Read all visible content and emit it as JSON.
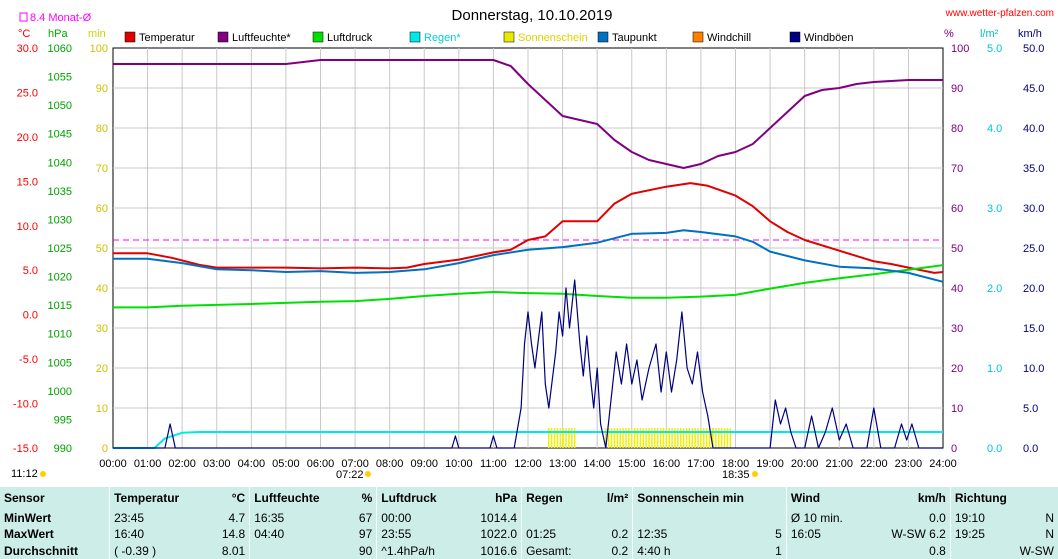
{
  "header": {
    "title": "Donnerstag, 10.10.2019",
    "site": "www.wetter-pfalzen.com",
    "monat_label": "8.4 Monat-Ø",
    "time_left": "11:12",
    "time_sunset": "18:35",
    "time_sunrise": "07:22"
  },
  "units": {
    "left": [
      "°C",
      "hPa",
      "min"
    ],
    "right": [
      "%",
      "l/m²",
      "km/h"
    ]
  },
  "legend": [
    {
      "label": "Temperatur",
      "color": "#e00000"
    },
    {
      "label": "Luftfeuchte*",
      "color": "#800080"
    },
    {
      "label": "Luftdruck",
      "color": "#00e000"
    },
    {
      "label": "Regen*",
      "color": "#00e8e8"
    },
    {
      "label": "Sonnenschein",
      "color": "#e8e800"
    },
    {
      "label": "Taupunkt",
      "color": "#0070c0"
    },
    {
      "label": "Windchill",
      "color": "#ff8000"
    },
    {
      "label": "Windböen",
      "color": "#000080"
    }
  ],
  "chart_data": {
    "type": "line",
    "title": "Donnerstag, 10.10.2019",
    "x_ticks": [
      "00:00",
      "01:00",
      "02:00",
      "03:00",
      "04:00",
      "05:00",
      "06:00",
      "07:00",
      "08:00",
      "09:00",
      "10:00",
      "11:00",
      "12:00",
      "13:00",
      "14:00",
      "15:00",
      "16:00",
      "17:00",
      "18:00",
      "19:00",
      "20:00",
      "21:00",
      "22:00",
      "23:00",
      "24:00"
    ],
    "xlim_hours": [
      0,
      24
    ],
    "axes": {
      "temperature_c": {
        "range": [
          -15,
          30
        ],
        "ticks": [
          "30.0",
          "25.0",
          "20.0",
          "15.0",
          "10.0",
          "5.0",
          "0.0",
          "-5.0",
          "-10.0",
          "-15.0"
        ]
      },
      "pressure_hpa": {
        "range": [
          990,
          1060
        ],
        "ticks": [
          "1060",
          "1055",
          "1050",
          "1045",
          "1040",
          "1035",
          "1030",
          "1025",
          "1020",
          "1015",
          "1010",
          "1005",
          "1000",
          "995",
          "990"
        ]
      },
      "sunshine_min": {
        "range": [
          0,
          100
        ],
        "ticks": [
          "100",
          "90",
          "80",
          "70",
          "60",
          "50",
          "40",
          "30",
          "20",
          "10",
          "0"
        ]
      },
      "humidity_pct": {
        "range": [
          0,
          100
        ],
        "ticks": [
          "100",
          "90",
          "80",
          "70",
          "60",
          "50",
          "40",
          "30",
          "20",
          "10",
          "0"
        ]
      },
      "rain_lm2": {
        "range": [
          0,
          5
        ],
        "ticks": [
          "5.0",
          "4.0",
          "3.0",
          "2.0",
          "1.0",
          "0.0"
        ]
      },
      "wind_kmh": {
        "range": [
          0,
          50
        ],
        "ticks": [
          "50.0",
          "45.0",
          "40.0",
          "35.0",
          "30.0",
          "25.0",
          "20.0",
          "15.0",
          "10.0",
          "5.0",
          "0.0"
        ]
      }
    },
    "monthly_avg_temp_c": 8.4,
    "series": [
      {
        "name": "Temperatur",
        "axis": "temperature_c",
        "color": "#e00000",
        "points": [
          [
            0,
            6.9
          ],
          [
            1,
            6.9
          ],
          [
            1.7,
            6.4
          ],
          [
            2.5,
            5.6
          ],
          [
            3,
            5.3
          ],
          [
            4,
            5.3
          ],
          [
            5,
            5.3
          ],
          [
            6,
            5.2
          ],
          [
            7,
            5.3
          ],
          [
            8,
            5.2
          ],
          [
            8.5,
            5.3
          ],
          [
            9,
            5.7
          ],
          [
            10,
            6.2
          ],
          [
            11,
            7.0
          ],
          [
            11.5,
            7.3
          ],
          [
            12,
            8.4
          ],
          [
            12.5,
            8.8
          ],
          [
            13,
            10.5
          ],
          [
            14,
            10.5
          ],
          [
            14.5,
            12.5
          ],
          [
            15,
            13.6
          ],
          [
            16,
            14.4
          ],
          [
            16.7,
            14.8
          ],
          [
            17.2,
            14.5
          ],
          [
            18,
            13.4
          ],
          [
            18.5,
            12.2
          ],
          [
            19,
            10.5
          ],
          [
            19.5,
            9.3
          ],
          [
            20,
            8.4
          ],
          [
            21,
            7.2
          ],
          [
            22,
            6.0
          ],
          [
            22.5,
            5.7
          ],
          [
            23,
            5.3
          ],
          [
            23.75,
            4.7
          ],
          [
            24,
            4.8
          ]
        ]
      },
      {
        "name": "Luftfeuchte*",
        "axis": "humidity_pct",
        "color": "#800080",
        "points": [
          [
            0,
            96
          ],
          [
            2,
            96
          ],
          [
            5,
            96
          ],
          [
            6,
            97
          ],
          [
            8,
            97
          ],
          [
            10,
            97
          ],
          [
            11,
            97
          ],
          [
            11.5,
            95.5
          ],
          [
            12,
            91
          ],
          [
            12.5,
            87
          ],
          [
            13,
            83
          ],
          [
            13.5,
            82
          ],
          [
            14,
            81
          ],
          [
            14.5,
            77
          ],
          [
            15,
            74
          ],
          [
            15.5,
            72
          ],
          [
            16,
            71
          ],
          [
            16.5,
            70
          ],
          [
            17,
            71
          ],
          [
            17.5,
            73
          ],
          [
            18,
            74
          ],
          [
            18.5,
            76
          ],
          [
            19,
            80
          ],
          [
            19.5,
            84
          ],
          [
            20,
            88
          ],
          [
            20.5,
            89.5
          ],
          [
            21,
            90
          ],
          [
            21.5,
            91
          ],
          [
            22,
            91.5
          ],
          [
            23,
            92
          ],
          [
            24,
            92
          ]
        ]
      },
      {
        "name": "Luftdruck",
        "axis": "pressure_hpa",
        "color": "#00e000",
        "points": [
          [
            0,
            1014.6
          ],
          [
            1,
            1014.6
          ],
          [
            2,
            1014.9
          ],
          [
            4,
            1015.2
          ],
          [
            6,
            1015.6
          ],
          [
            7,
            1015.7
          ],
          [
            8,
            1016.1
          ],
          [
            9,
            1016.6
          ],
          [
            10,
            1017.0
          ],
          [
            11,
            1017.3
          ],
          [
            12,
            1017.1
          ],
          [
            13,
            1017.0
          ],
          [
            14,
            1016.6
          ],
          [
            15,
            1016.3
          ],
          [
            16,
            1016.3
          ],
          [
            17,
            1016.5
          ],
          [
            18,
            1016.8
          ],
          [
            19,
            1017.9
          ],
          [
            20,
            1018.9
          ],
          [
            21,
            1019.7
          ],
          [
            22,
            1020.4
          ],
          [
            23,
            1021.2
          ],
          [
            24,
            1022.0
          ]
        ]
      },
      {
        "name": "Regen*",
        "axis": "rain_lm2",
        "color": "#00e8e8",
        "points": [
          [
            0,
            0
          ],
          [
            1.2,
            0
          ],
          [
            1.5,
            0.12
          ],
          [
            2,
            0.19
          ],
          [
            2.5,
            0.2
          ],
          [
            24,
            0.2
          ]
        ]
      },
      {
        "name": "Taupunkt",
        "axis": "temperature_c",
        "color": "#0070c0",
        "points": [
          [
            0,
            6.3
          ],
          [
            1,
            6.3
          ],
          [
            2,
            5.8
          ],
          [
            3,
            5.1
          ],
          [
            4,
            5.0
          ],
          [
            5,
            4.8
          ],
          [
            6,
            4.9
          ],
          [
            7,
            4.7
          ],
          [
            8,
            4.8
          ],
          [
            9,
            5.1
          ],
          [
            10,
            5.8
          ],
          [
            11,
            6.7
          ],
          [
            12,
            7.3
          ],
          [
            13,
            7.6
          ],
          [
            14,
            8.1
          ],
          [
            15,
            9.1
          ],
          [
            16,
            9.2
          ],
          [
            16.5,
            9.5
          ],
          [
            17,
            9.3
          ],
          [
            18,
            8.8
          ],
          [
            18.5,
            8.2
          ],
          [
            19,
            7.1
          ],
          [
            20,
            6.1
          ],
          [
            21,
            5.4
          ],
          [
            22,
            5.2
          ],
          [
            23,
            4.7
          ],
          [
            24,
            3.7
          ]
        ]
      },
      {
        "name": "Windböen",
        "axis": "wind_kmh",
        "color": "#000080",
        "points": [
          [
            0,
            0
          ],
          [
            1.5,
            0
          ],
          [
            1.65,
            3
          ],
          [
            1.8,
            0
          ],
          [
            9.8,
            0
          ],
          [
            9.9,
            1.5
          ],
          [
            10,
            0
          ],
          [
            10.9,
            0
          ],
          [
            11,
            1.5
          ],
          [
            11.1,
            0
          ],
          [
            11.6,
            0
          ],
          [
            11.8,
            5
          ],
          [
            11.9,
            13
          ],
          [
            12.0,
            17
          ],
          [
            12.1,
            13
          ],
          [
            12.2,
            10
          ],
          [
            12.4,
            17
          ],
          [
            12.5,
            8
          ],
          [
            12.6,
            5
          ],
          [
            12.8,
            12
          ],
          [
            12.9,
            17
          ],
          [
            13.0,
            14
          ],
          [
            13.1,
            20
          ],
          [
            13.2,
            15
          ],
          [
            13.35,
            21
          ],
          [
            13.5,
            13
          ],
          [
            13.6,
            9
          ],
          [
            13.7,
            14
          ],
          [
            13.8,
            9
          ],
          [
            13.9,
            5
          ],
          [
            14.0,
            10
          ],
          [
            14.1,
            3
          ],
          [
            14.25,
            0
          ],
          [
            14.4,
            6
          ],
          [
            14.55,
            12
          ],
          [
            14.7,
            8
          ],
          [
            14.85,
            13
          ],
          [
            15.0,
            8
          ],
          [
            15.15,
            11
          ],
          [
            15.3,
            6
          ],
          [
            15.5,
            10
          ],
          [
            15.7,
            13
          ],
          [
            15.85,
            7
          ],
          [
            16.0,
            12
          ],
          [
            16.15,
            7
          ],
          [
            16.3,
            11
          ],
          [
            16.45,
            17
          ],
          [
            16.6,
            10
          ],
          [
            16.75,
            8
          ],
          [
            16.9,
            12
          ],
          [
            17.05,
            7
          ],
          [
            17.2,
            4
          ],
          [
            17.35,
            0
          ],
          [
            19.0,
            0
          ],
          [
            19.15,
            6
          ],
          [
            19.3,
            3
          ],
          [
            19.45,
            5
          ],
          [
            19.6,
            2
          ],
          [
            19.75,
            0
          ],
          [
            20.0,
            0
          ],
          [
            20.2,
            4
          ],
          [
            20.4,
            0
          ],
          [
            20.6,
            2
          ],
          [
            20.8,
            5
          ],
          [
            21.0,
            1
          ],
          [
            21.2,
            3
          ],
          [
            21.4,
            0
          ],
          [
            21.8,
            0
          ],
          [
            22.0,
            5
          ],
          [
            22.2,
            0
          ],
          [
            22.6,
            0
          ],
          [
            22.8,
            3
          ],
          [
            22.95,
            1
          ],
          [
            23.1,
            3
          ],
          [
            23.3,
            0
          ],
          [
            24,
            0
          ]
        ]
      }
    ],
    "sunshine_intervals_hours": [
      [
        12.6,
        13.4
      ],
      [
        14.25,
        17.35
      ],
      [
        17.35,
        17.9
      ]
    ],
    "sunshine_bar_height_min": 5
  },
  "summary": {
    "headers": [
      "Sensor",
      "Temperatur",
      "°C",
      "Luftfeuchte",
      "%",
      "Luftdruck",
      "hPa",
      "Regen",
      "l/m²",
      "Sonnenschein min",
      "Wind",
      "km/h",
      "Richtung"
    ],
    "rows": [
      {
        "label": "MinWert",
        "cells": [
          "23:45",
          "4.7",
          "16:35",
          "67",
          "00:00",
          "1014.4",
          "",
          "",
          "",
          "",
          "Ø 10 min.",
          "0.0",
          "19:10",
          "N"
        ]
      },
      {
        "label": "MaxWert",
        "cells": [
          "16:40",
          "14.8",
          "04:40",
          "97",
          "23:55",
          "1022.0",
          "01:25",
          "0.2",
          "12:35",
          "5",
          "16:05",
          "W-SW 6.2",
          "19:25",
          "N"
        ]
      },
      {
        "label": "Durchschnitt",
        "cells": [
          "( -0.39 )",
          "8.01",
          "",
          "90",
          "^1.4hPa/h",
          "1016.6",
          "Gesamt:",
          "0.2",
          "4:40 h",
          "1",
          "",
          "0.8",
          "",
          "W-SW"
        ]
      }
    ]
  }
}
